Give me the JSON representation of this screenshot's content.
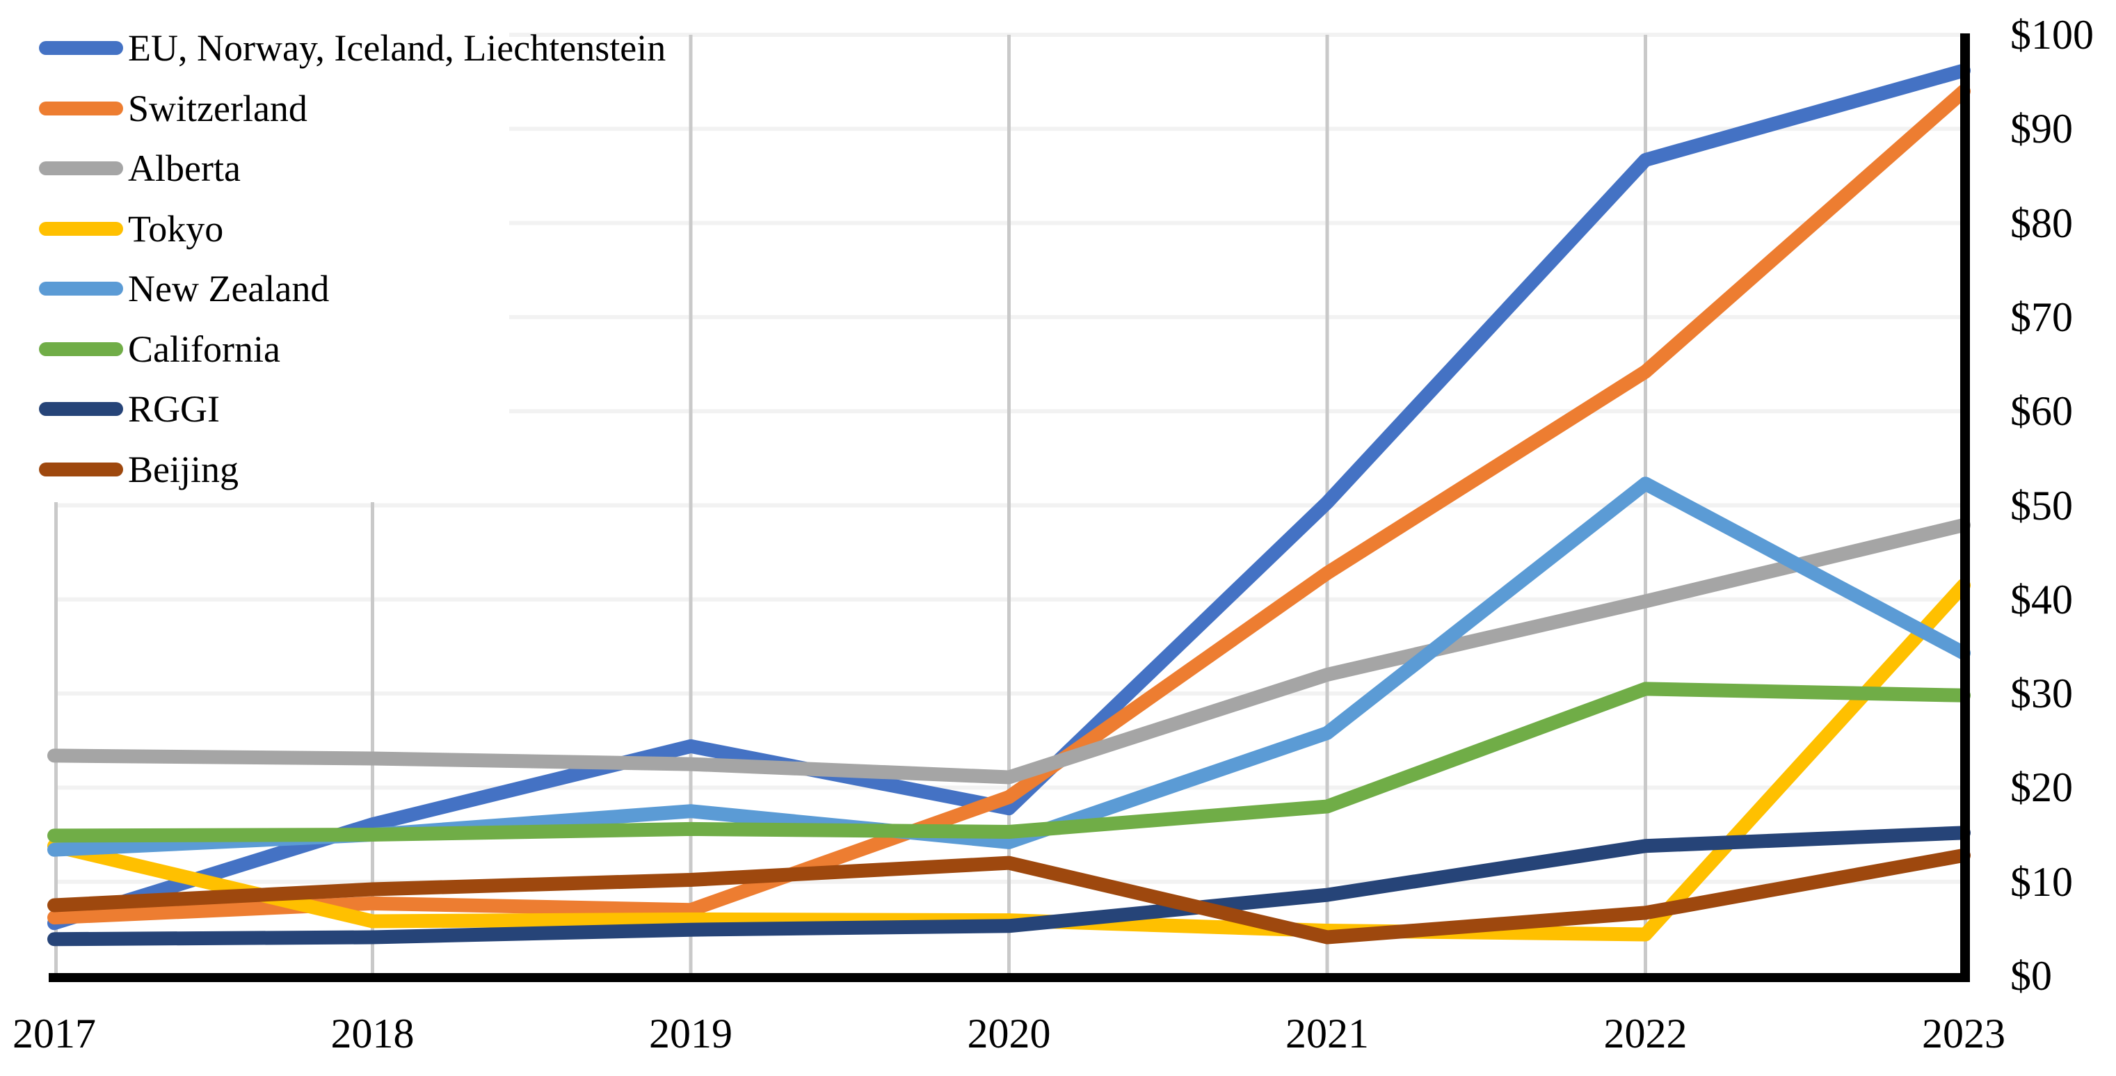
{
  "chart_data": {
    "type": "line",
    "title": "",
    "xlabel": "",
    "ylabel": "",
    "x": [
      2017,
      2018,
      2019,
      2020,
      2021,
      2022,
      2023
    ],
    "x_tick_labels": [
      "2017",
      "2018",
      "2019",
      "2020",
      "2021",
      "2022",
      "2023"
    ],
    "y_tick_labels": [
      "$0",
      "$10",
      "$20",
      "$30",
      "$40",
      "$50",
      "$60",
      "$70",
      "$80",
      "$90",
      "$100"
    ],
    "ylim": [
      0,
      100
    ],
    "y_axis_side": "right",
    "grid": {
      "horizontal": true,
      "vertical": true
    },
    "legend_position": "top-left-overlay",
    "axis_color": "#000000",
    "hgrid_color": "#F2F2F2",
    "vgrid_color": "#C9C9C9",
    "line_width": 20,
    "series": [
      {
        "name": "EU, Norway, Iceland, Liechtenstein",
        "color": "#4472C4",
        "values": [
          5.6,
          16.1,
          24.4,
          17.8,
          50.3,
          86.7,
          96.2
        ]
      },
      {
        "name": "Switzerland",
        "color": "#ED7D31",
        "values": [
          6.2,
          7.7,
          7.0,
          19.0,
          42.8,
          64.2,
          94.0
        ]
      },
      {
        "name": "Alberta",
        "color": "#A5A5A5",
        "values": [
          23.4,
          23.1,
          22.5,
          21.1,
          32.0,
          39.8,
          47.9
        ]
      },
      {
        "name": "Tokyo",
        "color": "#FFC000",
        "values": [
          13.8,
          5.8,
          6.0,
          5.9,
          4.8,
          4.4,
          41.5
        ]
      },
      {
        "name": "New Zealand",
        "color": "#5B9BD5",
        "values": [
          13.4,
          15.0,
          17.5,
          14.2,
          25.8,
          52.3,
          34.3
        ]
      },
      {
        "name": "California",
        "color": "#70AD47",
        "values": [
          14.9,
          15.0,
          15.6,
          15.3,
          18.0,
          30.5,
          29.8
        ]
      },
      {
        "name": "RGGI",
        "color": "#264478",
        "values": [
          3.9,
          4.1,
          4.9,
          5.3,
          8.6,
          13.8,
          15.2
        ]
      },
      {
        "name": "Beijing",
        "color": "#9E480E",
        "values": [
          7.5,
          9.2,
          10.2,
          12.0,
          4.1,
          6.7,
          12.8
        ]
      }
    ]
  }
}
